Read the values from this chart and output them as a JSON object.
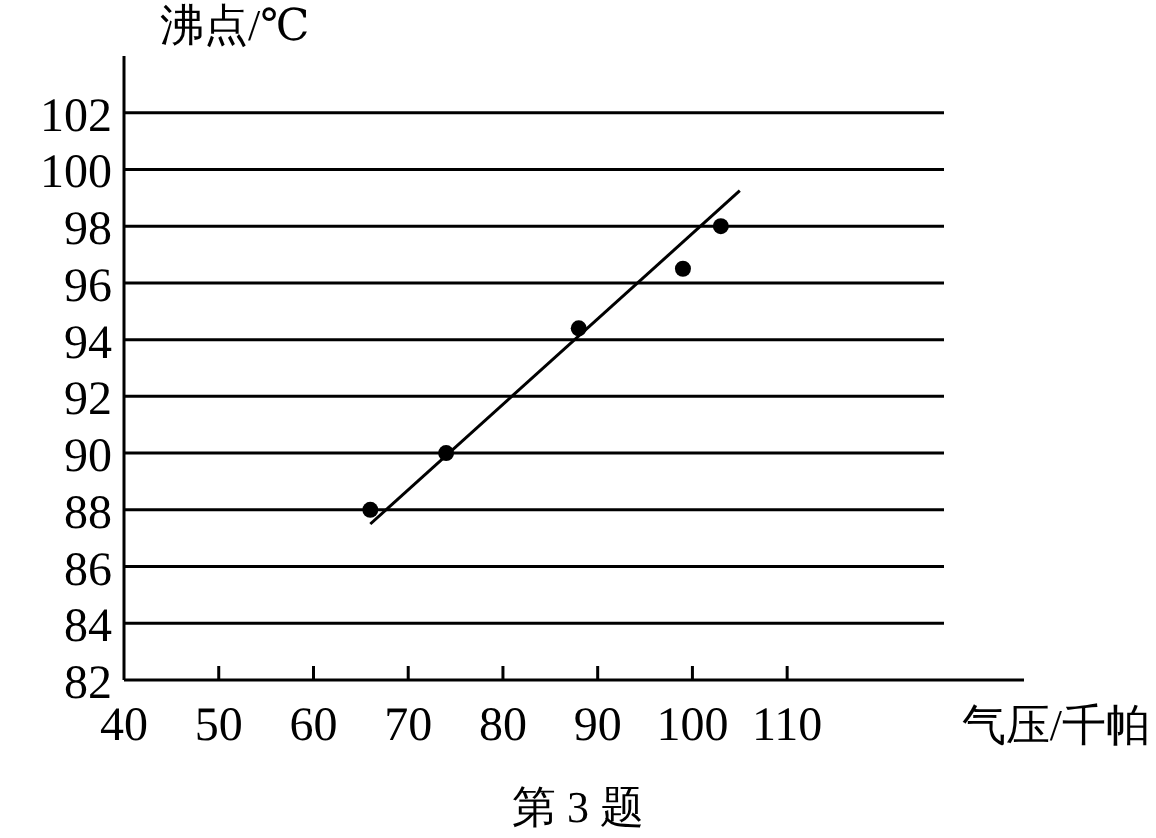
{
  "chart_data": {
    "type": "scatter",
    "xlabel": "气压/千帕",
    "ylabel": "沸点/℃",
    "annotations": [
      "第 3 题"
    ],
    "xlim": [
      40,
      135
    ],
    "ylim": [
      82,
      104
    ],
    "xticks": [
      40,
      50,
      60,
      70,
      80,
      90,
      100,
      110
    ],
    "yticks": [
      82,
      84,
      86,
      88,
      90,
      92,
      94,
      96,
      98,
      100,
      102
    ],
    "grid": "y",
    "series": [
      {
        "type": "scatter",
        "marker": "circle",
        "color": "#000000",
        "x": [
          66,
          74,
          88,
          99,
          103
        ],
        "values": [
          88,
          90,
          94.4,
          96.5,
          98
        ]
      },
      {
        "type": "line",
        "color": "#000000",
        "x": [
          66,
          105
        ],
        "values": [
          87.5,
          99.25
        ],
        "marker": "none"
      }
    ]
  }
}
